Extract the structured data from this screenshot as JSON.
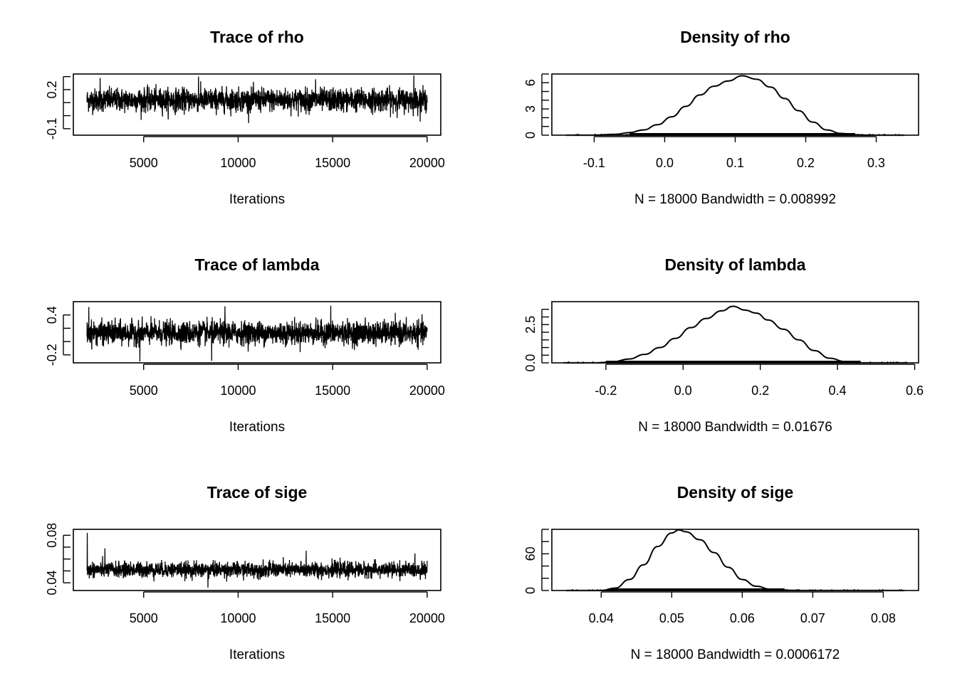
{
  "chart_data": [
    {
      "type": "line",
      "kind": "trace",
      "title": "Trace of rho",
      "xlabel": "Iterations",
      "x_range": [
        2001,
        20000
      ],
      "xlim": [
        1280,
        20720
      ],
      "ylim": [
        -0.15,
        0.32
      ],
      "x_ticks": [
        5000,
        10000,
        15000,
        20000
      ],
      "y_ticks": [
        -0.1,
        0.0,
        0.1,
        0.2,
        0.3
      ],
      "y_tick_labels": [
        "-0.1",
        "",
        "",
        "0.2",
        ""
      ],
      "mean": 0.12,
      "spread": 0.044,
      "min": -0.09,
      "max": 0.31,
      "spikes": [
        [
          19300,
          0.31
        ],
        [
          7900,
          0.3
        ],
        [
          2700,
          0.29
        ],
        [
          14100,
          0.28
        ]
      ]
    },
    {
      "type": "line",
      "kind": "density",
      "title": "Density of rho",
      "xlabel": "N = 18000   Bandwidth = 0.008992",
      "xlim": [
        -0.16,
        0.36
      ],
      "ylim": [
        0,
        7
      ],
      "x_ticks": [
        -0.1,
        0.0,
        0.1,
        0.2,
        0.3
      ],
      "x_tick_labels": [
        "-0.1",
        "0.0",
        "0.1",
        "0.2",
        "0.3"
      ],
      "y_ticks": [
        0,
        1,
        2,
        3,
        4,
        5,
        6,
        7
      ],
      "y_tick_labels": [
        "0",
        "",
        "",
        "3",
        "",
        "",
        "6",
        ""
      ],
      "x": [
        -0.1,
        -0.07,
        -0.05,
        -0.03,
        -0.01,
        0.01,
        0.03,
        0.05,
        0.07,
        0.09,
        0.11,
        0.13,
        0.15,
        0.17,
        0.19,
        0.21,
        0.23,
        0.25,
        0.27,
        0.29
      ],
      "y": [
        0.0,
        0.1,
        0.3,
        0.6,
        1.2,
        2.1,
        3.3,
        4.6,
        5.6,
        6.2,
        6.8,
        6.4,
        5.5,
        4.2,
        2.8,
        1.5,
        0.6,
        0.2,
        0.05,
        0.0
      ],
      "rug_range": [
        -0.14,
        0.34
      ],
      "rug_dense": [
        -0.05,
        0.27
      ]
    },
    {
      "type": "line",
      "kind": "trace",
      "title": "Trace of lambda",
      "xlabel": "Iterations",
      "x_range": [
        2001,
        20000
      ],
      "xlim": [
        1280,
        20720
      ],
      "ylim": [
        -0.32,
        0.6
      ],
      "x_ticks": [
        5000,
        10000,
        15000,
        20000
      ],
      "y_ticks": [
        -0.2,
        0.0,
        0.2,
        0.4
      ],
      "y_tick_labels": [
        "-0.2",
        "",
        "",
        "0.4"
      ],
      "mean": 0.13,
      "spread": 0.085,
      "min": -0.29,
      "max": 0.54,
      "spikes": [
        [
          2100,
          0.52
        ],
        [
          9300,
          0.53
        ],
        [
          14900,
          0.54
        ],
        [
          4800,
          -0.3
        ],
        [
          8600,
          -0.29
        ]
      ]
    },
    {
      "type": "line",
      "kind": "density",
      "title": "Density of lambda",
      "xlabel": "N = 18000   Bandwidth = 0.01676",
      "xlim": [
        -0.34,
        0.61
      ],
      "ylim": [
        0,
        4.0
      ],
      "x_ticks": [
        -0.2,
        0.0,
        0.2,
        0.4,
        0.6
      ],
      "x_tick_labels": [
        "-0.2",
        "0.0",
        "0.2",
        "0.4",
        "0.6"
      ],
      "y_ticks": [
        0,
        0.5,
        1.0,
        1.5,
        2.0,
        2.5,
        3.0,
        3.5
      ],
      "y_tick_labels": [
        "0.0",
        "",
        "",
        "",
        "",
        "2.5",
        "",
        ""
      ],
      "x": [
        -0.22,
        -0.18,
        -0.14,
        -0.1,
        -0.06,
        -0.02,
        0.02,
        0.06,
        0.1,
        0.13,
        0.16,
        0.19,
        0.22,
        0.26,
        0.3,
        0.34,
        0.38,
        0.42,
        0.46
      ],
      "y": [
        0.0,
        0.08,
        0.25,
        0.55,
        1.0,
        1.6,
        2.3,
        2.9,
        3.4,
        3.7,
        3.45,
        3.25,
        2.8,
        2.2,
        1.5,
        0.8,
        0.3,
        0.08,
        0.0
      ],
      "rug_range": [
        -0.31,
        0.58
      ],
      "rug_dense": [
        -0.2,
        0.46
      ]
    },
    {
      "type": "line",
      "kind": "trace",
      "title": "Trace of sige",
      "xlabel": "Iterations",
      "x_range": [
        2001,
        20000
      ],
      "xlim": [
        1280,
        20720
      ],
      "ylim": [
        0.0335,
        0.085
      ],
      "x_ticks": [
        5000,
        10000,
        15000,
        20000
      ],
      "y_ticks": [
        0.04,
        0.05,
        0.06,
        0.07,
        0.08
      ],
      "y_tick_labels": [
        "0.04",
        "",
        "",
        "",
        "0.08"
      ],
      "mean": 0.051,
      "spread": 0.0032,
      "min": 0.036,
      "max": 0.082,
      "spikes": [
        [
          2020,
          0.082
        ],
        [
          2950,
          0.069
        ],
        [
          13600,
          0.067
        ],
        [
          8400,
          0.036
        ]
      ]
    },
    {
      "type": "line",
      "kind": "density",
      "title": "Density of sige",
      "xlabel": "N = 18000   Bandwidth = 0.0006172",
      "xlim": [
        0.033,
        0.085
      ],
      "ylim": [
        0,
        100
      ],
      "x_ticks": [
        0.04,
        0.05,
        0.06,
        0.07,
        0.08
      ],
      "x_tick_labels": [
        "0.04",
        "0.05",
        "0.06",
        "0.07",
        "0.08"
      ],
      "y_ticks": [
        0,
        20,
        40,
        60,
        80,
        100
      ],
      "y_tick_labels": [
        "0",
        "",
        "",
        "60",
        "",
        ""
      ],
      "x": [
        0.04,
        0.042,
        0.044,
        0.046,
        0.048,
        0.05,
        0.051,
        0.052,
        0.054,
        0.056,
        0.058,
        0.06,
        0.062,
        0.064,
        0.066,
        0.068
      ],
      "y": [
        0,
        4,
        18,
        42,
        72,
        94,
        99,
        96,
        83,
        62,
        38,
        18,
        7,
        2,
        0.5,
        0
      ],
      "rug_range": [
        0.035,
        0.083
      ],
      "rug_dense": [
        0.041,
        0.066
      ]
    }
  ]
}
